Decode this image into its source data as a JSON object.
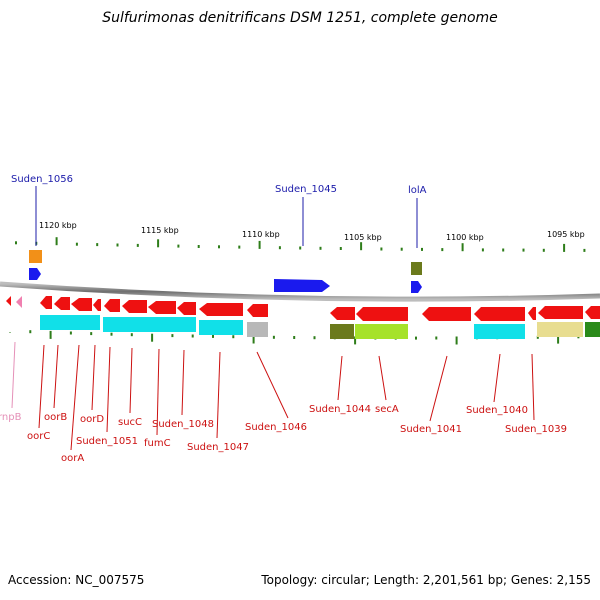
{
  "header": {
    "title": "Sulfurimonas denitrificans DSM 1251, complete genome"
  },
  "scale_labels": [
    "1120 kbp",
    "1115 kbp",
    "1110 kbp",
    "1105 kbp",
    "1100 kbp",
    "1095 kbp"
  ],
  "top_genes": [
    "Suden_1056",
    "Suden_1045",
    "lolA"
  ],
  "bottom_genes": [
    "rnpB",
    "oorC",
    "oorB",
    "oorA",
    "oorD",
    "Suden_1051",
    "sucC",
    "fumC",
    "Suden_1048",
    "Suden_1047",
    "Suden_1046",
    "Suden_1044",
    "secA",
    "Suden_1041",
    "Suden_1040",
    "Suden_1039"
  ],
  "footer": {
    "accession_label": "Accession:",
    "accession": "NC_007575",
    "topology_label": "Topology:",
    "topology": "circular",
    "length_label": "Length:",
    "length": "2,201,561 bp",
    "genes_label": "Genes:",
    "genes": "2,155"
  },
  "colors": {
    "cds": "#ee1111",
    "cds_top": "#1a1aee",
    "rna": "#f080b0",
    "cyan": "#11e0e8",
    "olive": "#6b7a1c",
    "lime": "#a6e22a",
    "orange": "#f29018",
    "grey": "#b8b8b8",
    "khaki": "#e8dd90",
    "green": "#2a8a1a",
    "top_label": "#1c1caa",
    "bottom_label": "#cc1111",
    "rna_label": "#e590b8"
  }
}
